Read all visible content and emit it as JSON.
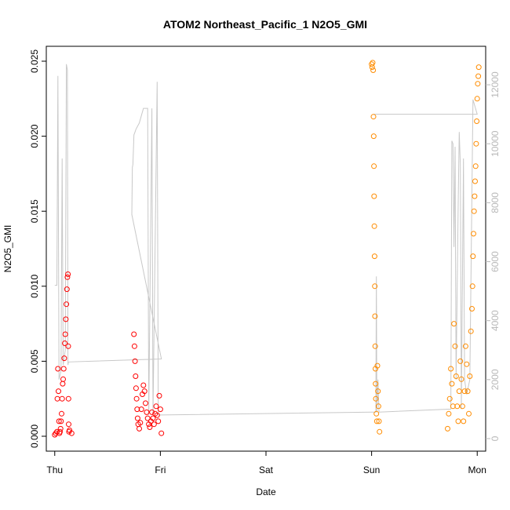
{
  "chart_data": {
    "type": "scatter",
    "title": "ATOM2 Northeast_Pacific_1 N2O5_GMI",
    "xlabel": "Date",
    "ylabel": "N2O5_GMI",
    "x_tick_labels": [
      "Thu",
      "Fri",
      "Sat",
      "Sun",
      "Mon"
    ],
    "x_tick_values": [
      0,
      1,
      2,
      3,
      4
    ],
    "xlim": [
      -0.08,
      4.08
    ],
    "ylim": [
      0,
      0.025
    ],
    "y_ticks": [
      "0.000",
      "0.005",
      "0.010",
      "0.015",
      "0.020",
      "0.025"
    ],
    "y_tick_values": [
      0,
      0.005,
      0.01,
      0.015,
      0.02,
      0.025
    ],
    "y2_ticks": [
      "0",
      "2000",
      "4000",
      "6000",
      "8000",
      "10000",
      "12000"
    ],
    "y2_tick_values": [
      0,
      2000,
      4000,
      6000,
      8000,
      10000,
      12000
    ],
    "y2lim": [
      0,
      12800
    ],
    "grid": false,
    "colors": {
      "series_red": "#ff0000",
      "series_orange": "#ff8c00",
      "altitude_line": "#c8c8c8",
      "right_axis": "#b8b8b8"
    },
    "series": [
      {
        "color": "red",
        "marker": "open-circle",
        "points": [
          [
            0.0,
            0.0001
          ],
          [
            0.01,
            0.0002
          ],
          [
            0.02,
            0.0003
          ],
          [
            0.025,
            0.0025
          ],
          [
            0.03,
            0.0045
          ],
          [
            0.035,
            0.003
          ],
          [
            0.04,
            0.001
          ],
          [
            0.045,
            0.0002
          ],
          [
            0.05,
            0.0003
          ],
          [
            0.055,
            0.0005
          ],
          [
            0.06,
            0.001
          ],
          [
            0.065,
            0.0015
          ],
          [
            0.07,
            0.0025
          ],
          [
            0.075,
            0.0035
          ],
          [
            0.08,
            0.0038
          ],
          [
            0.085,
            0.0045
          ],
          [
            0.09,
            0.0052
          ],
          [
            0.095,
            0.0062
          ],
          [
            0.1,
            0.0068
          ],
          [
            0.105,
            0.0078
          ],
          [
            0.11,
            0.0088
          ],
          [
            0.115,
            0.0098
          ],
          [
            0.12,
            0.0106
          ],
          [
            0.125,
            0.0108
          ],
          [
            0.128,
            0.006
          ],
          [
            0.13,
            0.0025
          ],
          [
            0.132,
            0.0008
          ],
          [
            0.135,
            0.0003
          ],
          [
            0.14,
            0.0004
          ],
          [
            0.16,
            0.0002
          ],
          [
            0.75,
            0.0068
          ],
          [
            0.755,
            0.006
          ],
          [
            0.76,
            0.005
          ],
          [
            0.765,
            0.004
          ],
          [
            0.77,
            0.0032
          ],
          [
            0.775,
            0.0025
          ],
          [
            0.78,
            0.0018
          ],
          [
            0.785,
            0.0012
          ],
          [
            0.79,
            0.0008
          ],
          [
            0.8,
            0.0005
          ],
          [
            0.81,
            0.0009
          ],
          [
            0.82,
            0.0018
          ],
          [
            0.83,
            0.0028
          ],
          [
            0.84,
            0.0034
          ],
          [
            0.85,
            0.003
          ],
          [
            0.86,
            0.0022
          ],
          [
            0.87,
            0.0016
          ],
          [
            0.88,
            0.0012
          ],
          [
            0.89,
            0.0008
          ],
          [
            0.9,
            0.0006
          ],
          [
            0.91,
            0.001
          ],
          [
            0.92,
            0.0016
          ],
          [
            0.93,
            0.0012
          ],
          [
            0.94,
            0.0008
          ],
          [
            0.95,
            0.0015
          ],
          [
            0.96,
            0.002
          ],
          [
            0.97,
            0.0014
          ],
          [
            0.98,
            0.001
          ],
          [
            0.99,
            0.0027
          ],
          [
            1.0,
            0.0018
          ],
          [
            1.01,
            0.0002
          ]
        ]
      },
      {
        "color": "orange",
        "marker": "open-circle",
        "points": [
          [
            3.0,
            0.0248
          ],
          [
            3.005,
            0.0246
          ],
          [
            3.01,
            0.0249
          ],
          [
            3.015,
            0.0244
          ],
          [
            3.018,
            0.0213
          ],
          [
            3.02,
            0.02
          ],
          [
            3.022,
            0.018
          ],
          [
            3.024,
            0.016
          ],
          [
            3.026,
            0.014
          ],
          [
            3.028,
            0.012
          ],
          [
            3.03,
            0.01
          ],
          [
            3.032,
            0.008
          ],
          [
            3.034,
            0.006
          ],
          [
            3.036,
            0.0045
          ],
          [
            3.038,
            0.0035
          ],
          [
            3.04,
            0.0025
          ],
          [
            3.045,
            0.0015
          ],
          [
            3.05,
            0.001
          ],
          [
            3.055,
            0.0047
          ],
          [
            3.06,
            0.003
          ],
          [
            3.065,
            0.002
          ],
          [
            3.07,
            0.001
          ],
          [
            3.075,
            0.0003
          ],
          [
            3.72,
            0.0005
          ],
          [
            3.73,
            0.0015
          ],
          [
            3.74,
            0.0025
          ],
          [
            3.75,
            0.0045
          ],
          [
            3.76,
            0.0035
          ],
          [
            3.77,
            0.002
          ],
          [
            3.78,
            0.0075
          ],
          [
            3.79,
            0.006
          ],
          [
            3.8,
            0.004
          ],
          [
            3.81,
            0.002
          ],
          [
            3.82,
            0.001
          ],
          [
            3.83,
            0.003
          ],
          [
            3.84,
            0.005
          ],
          [
            3.85,
            0.0038
          ],
          [
            3.86,
            0.002
          ],
          [
            3.87,
            0.001
          ],
          [
            3.88,
            0.003
          ],
          [
            3.89,
            0.006
          ],
          [
            3.9,
            0.0048
          ],
          [
            3.91,
            0.003
          ],
          [
            3.92,
            0.0015
          ],
          [
            3.93,
            0.004
          ],
          [
            3.94,
            0.007
          ],
          [
            3.95,
            0.0085
          ],
          [
            3.955,
            0.01
          ],
          [
            3.96,
            0.012
          ],
          [
            3.965,
            0.0135
          ],
          [
            3.97,
            0.015
          ],
          [
            3.975,
            0.016
          ],
          [
            3.98,
            0.017
          ],
          [
            3.985,
            0.018
          ],
          [
            3.99,
            0.0195
          ],
          [
            3.995,
            0.021
          ],
          [
            4.0,
            0.0225
          ],
          [
            4.005,
            0.0235
          ],
          [
            4.01,
            0.024
          ],
          [
            4.015,
            0.0246
          ]
        ]
      }
    ],
    "altitude_line_points": [
      [
        0.0,
        5200
      ],
      [
        0.02,
        5200
      ],
      [
        0.03,
        12300
      ],
      [
        0.04,
        2000
      ],
      [
        0.06,
        2300
      ],
      [
        0.07,
        9500
      ],
      [
        0.08,
        2500
      ],
      [
        0.1,
        3000
      ],
      [
        0.11,
        12700
      ],
      [
        0.12,
        12500
      ],
      [
        0.125,
        2500
      ],
      [
        0.13,
        2600
      ],
      [
        1.01,
        2700
      ],
      [
        0.73,
        7600
      ],
      [
        0.735,
        9200
      ],
      [
        0.74,
        9300
      ],
      [
        0.75,
        10300
      ],
      [
        0.76,
        10400
      ],
      [
        0.77,
        10500
      ],
      [
        0.8,
        10700
      ],
      [
        0.84,
        11200
      ],
      [
        0.86,
        11200
      ],
      [
        0.88,
        11200
      ],
      [
        0.89,
        800
      ],
      [
        0.92,
        11200
      ],
      [
        0.93,
        800
      ],
      [
        0.97,
        12100
      ],
      [
        0.98,
        800
      ],
      [
        1.01,
        800
      ],
      [
        3.0,
        900
      ],
      [
        3.04,
        900
      ],
      [
        3.045,
        5500
      ],
      [
        3.05,
        900
      ],
      [
        3.06,
        2000
      ],
      [
        3.07,
        900
      ],
      [
        3.75,
        1000
      ],
      [
        3.76,
        10100
      ],
      [
        3.77,
        10000
      ],
      [
        3.78,
        6500
      ],
      [
        3.79,
        9900
      ],
      [
        3.8,
        2000
      ],
      [
        3.82,
        8000
      ],
      [
        3.83,
        10400
      ],
      [
        3.84,
        9300
      ],
      [
        3.85,
        1000
      ],
      [
        3.87,
        9500
      ],
      [
        3.88,
        2000
      ],
      [
        3.9,
        1500
      ],
      [
        3.93,
        2000
      ],
      [
        3.96,
        11500
      ],
      [
        4.0,
        11000
      ],
      [
        3.02,
        11000
      ],
      [
        3.03,
        11000
      ]
    ]
  }
}
